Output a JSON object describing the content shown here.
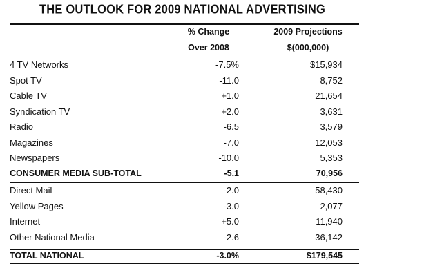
{
  "title": "THE OUTLOOK FOR 2009 NATIONAL ADVERTISING",
  "chart_data": {
    "type": "table",
    "title": "THE OUTLOOK FOR 2009 NATIONAL ADVERTISING",
    "columns": [
      {
        "line1": "% Change",
        "line2": "Over 2008"
      },
      {
        "line1": "2009 Projections",
        "line2": "$(000,000)"
      }
    ],
    "rows": [
      {
        "name": "4 TV Networks",
        "change": "-7.5%",
        "projection": "$15,934"
      },
      {
        "name": "Spot TV",
        "change": "-11.0",
        "projection": "8,752"
      },
      {
        "name": "Cable TV",
        "change": "+1.0",
        "projection": "21,654"
      },
      {
        "name": "Syndication TV",
        "change": "+2.0",
        "projection": "3,631"
      },
      {
        "name": "Radio",
        "change": "-6.5",
        "projection": "3,579"
      },
      {
        "name": "Magazines",
        "change": "-7.0",
        "projection": "12,053"
      },
      {
        "name": "Newspapers",
        "change": "-10.0",
        "projection": "5,353"
      },
      {
        "name": "CONSUMER MEDIA SUB-TOTAL",
        "change": "-5.1",
        "projection": "70,956"
      },
      {
        "name": "Direct Mail",
        "change": "-2.0",
        "projection": "58,430"
      },
      {
        "name": "Yellow Pages",
        "change": "-3.0",
        "projection": "2,077"
      },
      {
        "name": "Internet",
        "change": "+5.0",
        "projection": "11,940"
      },
      {
        "name": "Other National Media",
        "change": "-2.6",
        "projection": "36,142"
      },
      {
        "name": "TOTAL NATIONAL",
        "change": "-3.0%",
        "projection": "$179,545"
      }
    ]
  }
}
